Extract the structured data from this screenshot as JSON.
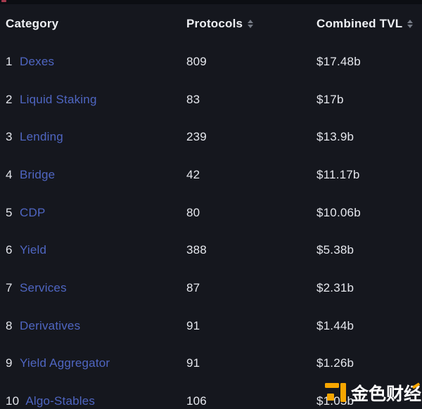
{
  "page": {
    "background": "#15171e"
  },
  "table": {
    "headers": [
      {
        "label": "Category",
        "sortable": false
      },
      {
        "label": "Protocols",
        "sortable": true
      },
      {
        "label": "Combined TVL",
        "sortable": true
      }
    ],
    "rows": [
      {
        "rank": "1",
        "category": "Dexes",
        "protocols": "809",
        "tvl": "$17.48b"
      },
      {
        "rank": "2",
        "category": "Liquid Staking",
        "protocols": "83",
        "tvl": "$17b"
      },
      {
        "rank": "3",
        "category": "Lending",
        "protocols": "239",
        "tvl": "$13.9b"
      },
      {
        "rank": "4",
        "category": "Bridge",
        "protocols": "42",
        "tvl": "$11.17b"
      },
      {
        "rank": "5",
        "category": "CDP",
        "protocols": "80",
        "tvl": "$10.06b"
      },
      {
        "rank": "6",
        "category": "Yield",
        "protocols": "388",
        "tvl": "$5.38b"
      },
      {
        "rank": "7",
        "category": "Services",
        "protocols": "87",
        "tvl": "$2.31b"
      },
      {
        "rank": "8",
        "category": "Derivatives",
        "protocols": "91",
        "tvl": "$1.44b"
      },
      {
        "rank": "9",
        "category": "Yield Aggregator",
        "protocols": "91",
        "tvl": "$1.26b"
      },
      {
        "rank": "10",
        "category": "Algo-Stables",
        "protocols": "106",
        "tvl": "$1.05b"
      }
    ]
  },
  "watermark": {
    "icon": "jinse-finance-logo",
    "text_main": "金色财",
    "text_last": "经"
  },
  "colors": {
    "background": "#15171e",
    "top_strip": "#0c0e13",
    "header_text": "#eef0f4",
    "row_text": "#e3e5eb",
    "category_link": "#4f66c2",
    "sort_icon": "#757a85",
    "watermark_orange": "#f7a600",
    "watermark_text": "#ffffff"
  }
}
